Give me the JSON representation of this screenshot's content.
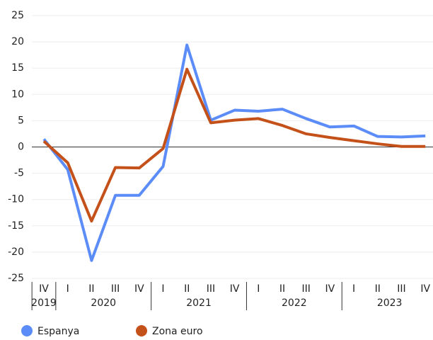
{
  "chart_data": {
    "type": "line",
    "groups": [
      {
        "label": "2019",
        "categories": [
          "IV"
        ]
      },
      {
        "label": "2020",
        "categories": [
          "I",
          "II",
          "III",
          "IV"
        ]
      },
      {
        "label": "2021",
        "categories": [
          "I",
          "II",
          "III",
          "IV"
        ]
      },
      {
        "label": "2022",
        "categories": [
          "I",
          "II",
          "III",
          "IV"
        ]
      },
      {
        "label": "2023",
        "categories": [
          "I",
          "II",
          "III",
          "IV"
        ]
      }
    ],
    "series": [
      {
        "name": "Espanya",
        "color": "#5b8cf7",
        "values": [
          1.5,
          -4.3,
          -21.6,
          -9.2,
          -9.2,
          -3.7,
          19.4,
          5.1,
          7.0,
          6.8,
          7.2,
          5.4,
          3.8,
          4.0,
          2.0,
          1.9,
          2.1
        ]
      },
      {
        "name": "Zona euro",
        "color": "#c4501a",
        "values": [
          1.1,
          -3.0,
          -14.1,
          -3.9,
          -4.0,
          -0.3,
          14.8,
          4.6,
          5.1,
          5.4,
          4.1,
          2.5,
          1.8,
          1.2,
          0.6,
          0.1,
          0.1
        ]
      }
    ],
    "ylim": [
      -25,
      25
    ],
    "yticks": [
      -25,
      -20,
      -15,
      -10,
      -5,
      0,
      5,
      10,
      15,
      20,
      25
    ],
    "grid": true
  }
}
